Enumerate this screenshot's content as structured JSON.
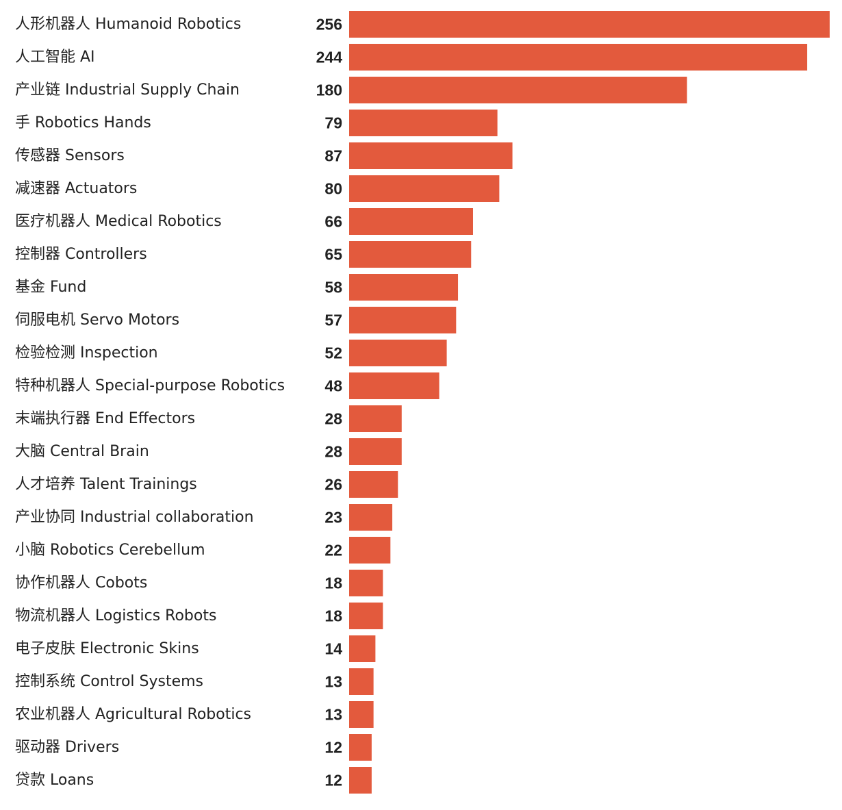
{
  "chart_data": {
    "type": "bar",
    "orientation": "horizontal",
    "bar_color": "#e35a3d",
    "categories": [
      "人形机器人 Humanoid Robotics",
      "人工智能 AI",
      "产业链 Industrial Supply Chain",
      "手 Robotics Hands",
      "传感器 Sensors",
      "减速器 Actuators",
      "医疗机器人 Medical Robotics",
      "控制器 Controllers",
      "基金 Fund",
      "伺服电机 Servo Motors",
      "检验检测 Inspection",
      "特种机器人 Special-purpose Robotics",
      "末端执行器 End Effectors",
      "大脑 Central Brain",
      "人才培养 Talent Trainings",
      "产业协同 Industrial collaboration",
      "小脑 Robotics Cerebellum",
      "协作机器人 Cobots",
      "物流机器人 Logistics Robots",
      "电子皮肤 Electronic Skins",
      "控制系统 Control Systems",
      "农业机器人 Agricultural Robotics",
      "驱动器 Drivers",
      "贷款 Loans"
    ],
    "values": [
      256,
      244,
      180,
      79,
      87,
      80,
      66,
      65,
      58,
      57,
      52,
      48,
      28,
      28,
      26,
      23,
      22,
      18,
      18,
      14,
      13,
      13,
      12,
      12
    ],
    "xlim": [
      0,
      256
    ],
    "grid": false,
    "legend": "none",
    "title": "",
    "xlabel": "",
    "ylabel": ""
  }
}
